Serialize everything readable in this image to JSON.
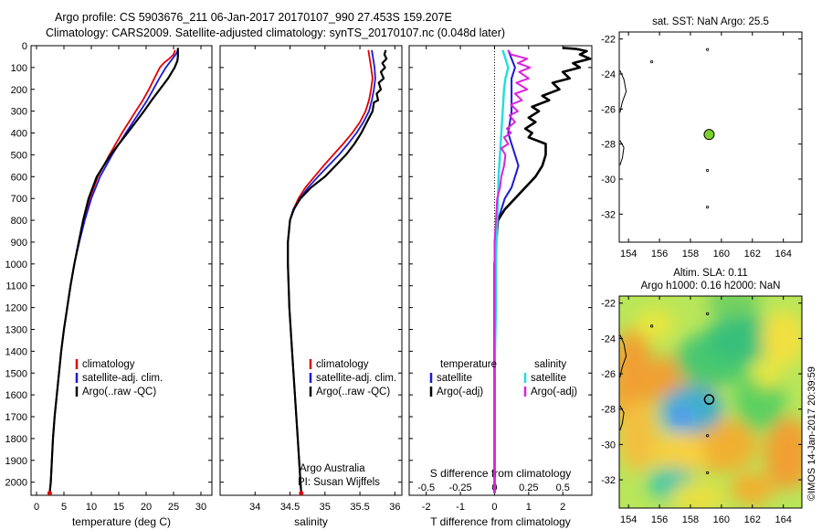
{
  "header": {
    "title_line1": "Argo profile: CS 5903676_211 06-Jan-2017 20170107_990 27.453S 159.207E",
    "title_line2": "Climatology: CARS2009. Satellite-adjusted climatology: synTS_20170107.nc (0.048d later)"
  },
  "side_text": "©IMOS 14-Jan-2017 20:39:59",
  "colors": {
    "climatology": "#e00000",
    "satellite": "#1a1ad6",
    "argo": "#000000",
    "sal_satellite": "#22dddd",
    "sal_argo": "#dd22dd",
    "float_dot": "#7cd22a"
  },
  "chart_data": [
    {
      "type": "line",
      "panel": "temperature",
      "xlabel": "temperature (deg C)",
      "ylabel": "",
      "xlim": [
        -1,
        32
      ],
      "ylim": [
        2060,
        0
      ],
      "y_reversed": true,
      "xticks": [
        0,
        5,
        10,
        15,
        20,
        25,
        30
      ],
      "yticks": [
        0,
        100,
        200,
        300,
        400,
        500,
        600,
        700,
        800,
        900,
        1000,
        1100,
        1200,
        1300,
        1400,
        1500,
        1600,
        1700,
        1800,
        1900,
        2000
      ],
      "legend": [
        "climatology",
        "satellite-adj. clim.",
        "Argo(..raw -QC)"
      ],
      "series": [
        {
          "name": "climatology",
          "depth": [
            2050,
            2000,
            1900,
            1800,
            1700,
            1600,
            1500,
            1400,
            1300,
            1200,
            1100,
            1000,
            900,
            800,
            700,
            600,
            500,
            400,
            300,
            250,
            200,
            150,
            100,
            80,
            60,
            40,
            20
          ],
          "values": [
            2.4,
            2.6,
            2.8,
            3.0,
            3.3,
            3.7,
            4.1,
            4.5,
            5.0,
            5.6,
            6.2,
            6.9,
            7.7,
            8.6,
            9.7,
            11.2,
            13.3,
            15.6,
            18.1,
            19.4,
            20.5,
            21.5,
            22.5,
            23.2,
            24.2,
            25.0,
            25.3
          ]
        },
        {
          "name": "satellite-adj. clim.",
          "depth": [
            2050,
            2000,
            1900,
            1800,
            1700,
            1600,
            1500,
            1400,
            1300,
            1200,
            1100,
            1000,
            900,
            800,
            700,
            600,
            500,
            400,
            300,
            250,
            200,
            150,
            100,
            80,
            60,
            40,
            20
          ],
          "values": [
            2.4,
            2.6,
            2.8,
            3.0,
            3.3,
            3.7,
            4.1,
            4.5,
            5.0,
            5.6,
            6.2,
            6.9,
            7.8,
            8.8,
            10.0,
            11.6,
            13.8,
            16.3,
            18.9,
            20.2,
            21.3,
            22.4,
            23.6,
            24.2,
            24.8,
            25.4,
            25.8
          ]
        },
        {
          "name": "Argo(..raw -QC)",
          "depth": [
            2050,
            2000,
            1900,
            1800,
            1700,
            1600,
            1500,
            1400,
            1300,
            1200,
            1100,
            1000,
            900,
            800,
            700,
            600,
            500,
            400,
            300,
            250,
            200,
            150,
            100,
            70,
            50,
            30,
            10
          ],
          "values": [
            2.4,
            2.6,
            2.8,
            3.0,
            3.3,
            3.7,
            4.1,
            4.5,
            5.0,
            5.6,
            6.2,
            6.9,
            7.7,
            8.5,
            9.5,
            11.0,
            13.5,
            16.6,
            19.6,
            21.0,
            22.5,
            24.0,
            25.2,
            25.7,
            25.8,
            25.8,
            25.8
          ]
        }
      ]
    },
    {
      "type": "line",
      "panel": "salinity",
      "xlabel": "salinity",
      "xlim": [
        33.5,
        36.1
      ],
      "ylim": [
        2060,
        0
      ],
      "y_reversed": true,
      "xticks": [
        34,
        34.5,
        35,
        35.5,
        36
      ],
      "legend": [
        "climatology",
        "satellite-adj. clim.",
        "Argo(..raw -QC)"
      ],
      "annotation": [
        "Argo Australia",
        "PI: Susan Wijffels"
      ],
      "series": [
        {
          "name": "climatology",
          "depth": [
            2050,
            2000,
            1800,
            1600,
            1400,
            1200,
            1000,
            900,
            800,
            750,
            700,
            650,
            600,
            550,
            500,
            450,
            400,
            350,
            300,
            250,
            200,
            150,
            100,
            60,
            20
          ],
          "values": [
            34.66,
            34.65,
            34.61,
            34.57,
            34.53,
            34.49,
            34.47,
            34.47,
            34.5,
            34.55,
            34.62,
            34.72,
            34.85,
            34.98,
            35.12,
            35.26,
            35.39,
            35.5,
            35.58,
            35.63,
            35.66,
            35.68,
            35.66,
            35.64,
            35.62
          ]
        },
        {
          "name": "satellite-adj. clim.",
          "depth": [
            2050,
            2000,
            1800,
            1600,
            1400,
            1200,
            1000,
            900,
            800,
            750,
            700,
            650,
            600,
            550,
            500,
            450,
            400,
            350,
            300,
            250,
            200,
            150,
            100,
            60,
            20
          ],
          "values": [
            34.66,
            34.65,
            34.61,
            34.57,
            34.53,
            34.49,
            34.47,
            34.47,
            34.5,
            34.56,
            34.64,
            34.76,
            34.9,
            35.05,
            35.2,
            35.33,
            35.45,
            35.55,
            35.63,
            35.67,
            35.7,
            35.72,
            35.71,
            35.69,
            35.67
          ]
        },
        {
          "name": "Argo(..raw -QC)",
          "depth": [
            2050,
            2000,
            1800,
            1600,
            1400,
            1200,
            1000,
            900,
            800,
            750,
            700,
            650,
            600,
            550,
            500,
            450,
            400,
            350,
            300,
            260,
            250,
            220,
            200,
            170,
            150,
            120,
            100,
            80,
            60,
            40,
            20
          ],
          "values": [
            34.66,
            34.65,
            34.61,
            34.57,
            34.53,
            34.49,
            34.47,
            34.47,
            34.5,
            34.55,
            34.65,
            34.8,
            35.0,
            35.15,
            35.3,
            35.42,
            35.52,
            35.6,
            35.68,
            35.7,
            35.76,
            35.74,
            35.8,
            35.77,
            35.84,
            35.8,
            35.86,
            35.82,
            35.88,
            35.85,
            35.87
          ]
        }
      ]
    },
    {
      "type": "line",
      "panel": "difference",
      "xlabel": "T difference from climatology",
      "xlabel_top": "S difference from climatology",
      "xlim": [
        -2.5,
        2.85
      ],
      "ylim": [
        2060,
        0
      ],
      "y_reversed": true,
      "xticks": [
        -2,
        -1,
        0,
        1,
        2
      ],
      "sticks": [
        -0.5,
        -0.25,
        0,
        0.25,
        0.5
      ],
      "legend_headers": [
        "temperature",
        "salinity"
      ],
      "legend": [
        "satellite",
        "Argo(-adj)",
        "satellite",
        "Argo(-adj)"
      ],
      "series": [
        {
          "name": "T satellite",
          "depth": [
            2050,
            1800,
            1500,
            1200,
            1000,
            900,
            800,
            700,
            650,
            600,
            550,
            500,
            450,
            400,
            350,
            300,
            250,
            200,
            150,
            100,
            60,
            20
          ],
          "values": [
            0,
            0,
            0,
            0,
            0,
            0,
            0.1,
            0.3,
            0.5,
            0.6,
            0.7,
            0.6,
            0.5,
            0.4,
            0.45,
            0.5,
            0.5,
            0.5,
            0.5,
            0.6,
            0.5,
            0.4
          ]
        },
        {
          "name": "T Argo(-adj)",
          "depth": [
            2050,
            1800,
            1500,
            1200,
            1000,
            900,
            800,
            750,
            700,
            650,
            600,
            550,
            500,
            450,
            420,
            400,
            380,
            350,
            330,
            300,
            280,
            250,
            230,
            200,
            170,
            150,
            120,
            100,
            80,
            60,
            40,
            25,
            15,
            10
          ],
          "values": [
            0,
            0,
            0,
            0,
            0,
            0.05,
            0.1,
            0.3,
            0.6,
            0.9,
            1.2,
            1.4,
            1.5,
            1.5,
            1.0,
            1.1,
            0.9,
            1.2,
            1.0,
            1.3,
            1.1,
            1.6,
            1.4,
            1.9,
            1.7,
            2.2,
            2.0,
            2.5,
            2.3,
            2.8,
            2.5,
            2.7,
            2.4,
            2.0
          ]
        },
        {
          "name": "S satellite",
          "depth": [
            2050,
            1800,
            1500,
            1200,
            1000,
            800,
            600,
            500,
            400,
            300,
            200,
            150,
            100,
            60,
            20
          ],
          "values": [
            0,
            0,
            0,
            0.01,
            0.01,
            0.02,
            0.03,
            0.04,
            0.05,
            0.06,
            0.07,
            0.08,
            0.1,
            0.08,
            0.06
          ]
        },
        {
          "name": "S Argo(-adj)",
          "depth": [
            2050,
            1800,
            1500,
            1200,
            1000,
            900,
            800,
            700,
            650,
            600,
            550,
            500,
            470,
            450,
            420,
            400,
            380,
            350,
            320,
            300,
            270,
            250,
            220,
            200,
            170,
            150,
            120,
            100,
            80,
            60,
            40,
            20
          ],
          "values": [
            0,
            0,
            0,
            0,
            0,
            0,
            0.01,
            0.02,
            0.04,
            0.05,
            0.07,
            0.08,
            0.05,
            0.1,
            0.07,
            0.12,
            0.09,
            0.15,
            0.11,
            0.17,
            0.12,
            0.2,
            0.15,
            0.24,
            0.16,
            0.25,
            0.18,
            0.26,
            0.17,
            0.24,
            0.12,
            0.1
          ]
        }
      ]
    },
    {
      "type": "heatmap",
      "panel": "sst_map",
      "title": "sat. SST: NaN Argo: 25.5",
      "xlim": [
        153.4,
        165.2
      ],
      "ylim": [
        -33.6,
        -21.6
      ],
      "xticks": [
        154,
        156,
        158,
        160,
        162,
        164
      ],
      "yticks": [
        -22,
        -24,
        -26,
        -28,
        -30,
        -32
      ],
      "float_position": [
        159.207,
        -27.453
      ]
    },
    {
      "type": "heatmap",
      "panel": "sla_map",
      "title_line1": "Altim. SLA: 0.11",
      "title_line2": "Argo h1000: 0.16 h2000: NaN",
      "xlim": [
        153.4,
        165.2
      ],
      "ylim": [
        -33.6,
        -21.6
      ],
      "xticks": [
        154,
        156,
        158,
        160,
        162,
        164
      ],
      "yticks": [
        -22,
        -24,
        -26,
        -28,
        -30,
        -32
      ],
      "float_position": [
        159.207,
        -27.453
      ]
    }
  ]
}
